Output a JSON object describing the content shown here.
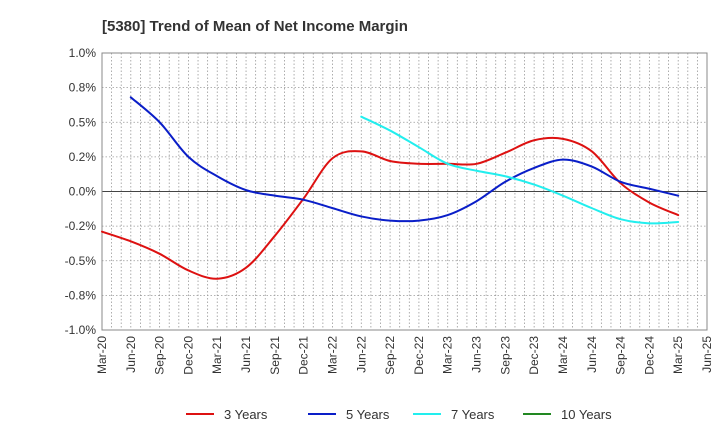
{
  "chart_data": {
    "type": "line",
    "title": "[5380]  Trend of Mean of Net Income Margin",
    "xlabel": "",
    "ylabel": "",
    "ylim": [
      -1.0,
      1.0
    ],
    "grid": true,
    "legend_position": "bottom",
    "x_ticks": [
      "Mar-20",
      "Jun-20",
      "Sep-20",
      "Dec-20",
      "Mar-21",
      "Jun-21",
      "Sep-21",
      "Dec-21",
      "Mar-22",
      "Jun-22",
      "Sep-22",
      "Dec-22",
      "Mar-23",
      "Jun-23",
      "Sep-23",
      "Dec-23",
      "Mar-24",
      "Jun-24",
      "Sep-24",
      "Dec-24",
      "Mar-25",
      "Jun-25"
    ],
    "y_ticks": [
      {
        "value": 1.0,
        "label": "1.0%"
      },
      {
        "value": 0.75,
        "label": "0.8%"
      },
      {
        "value": 0.5,
        "label": "0.5%"
      },
      {
        "value": 0.25,
        "label": "0.2%"
      },
      {
        "value": 0.0,
        "label": "0.0%"
      },
      {
        "value": -0.25,
        "label": "-0.2%"
      },
      {
        "value": -0.5,
        "label": "-0.5%"
      },
      {
        "value": -0.75,
        "label": "-0.8%"
      },
      {
        "value": -1.0,
        "label": "-1.0%"
      }
    ],
    "series": [
      {
        "name": "3 Years",
        "color": "#dd1111",
        "values": [
          -0.29,
          -0.36,
          -0.45,
          -0.57,
          -0.63,
          -0.55,
          -0.32,
          -0.05,
          0.24,
          0.29,
          0.22,
          0.2,
          0.2,
          0.2,
          0.28,
          0.37,
          0.38,
          0.29,
          0.06,
          -0.08,
          -0.17,
          null
        ]
      },
      {
        "name": "5 Years",
        "color": "#0a1ec8",
        "values": [
          null,
          0.68,
          0.5,
          0.25,
          0.11,
          0.01,
          -0.03,
          -0.06,
          -0.12,
          -0.18,
          -0.21,
          -0.21,
          -0.17,
          -0.07,
          0.07,
          0.17,
          0.23,
          0.18,
          0.07,
          0.02,
          -0.03,
          null
        ]
      },
      {
        "name": "7 Years",
        "color": "#22eeee",
        "values": [
          null,
          null,
          null,
          null,
          null,
          null,
          null,
          null,
          null,
          0.54,
          0.44,
          0.32,
          0.2,
          0.15,
          0.11,
          0.05,
          -0.03,
          -0.12,
          -0.2,
          -0.23,
          -0.22,
          null
        ]
      },
      {
        "name": "10 Years",
        "color": "#228822",
        "values": [
          null,
          null,
          null,
          null,
          null,
          null,
          null,
          null,
          null,
          null,
          null,
          null,
          null,
          null,
          null,
          null,
          null,
          null,
          null,
          null,
          null,
          null
        ]
      }
    ]
  }
}
